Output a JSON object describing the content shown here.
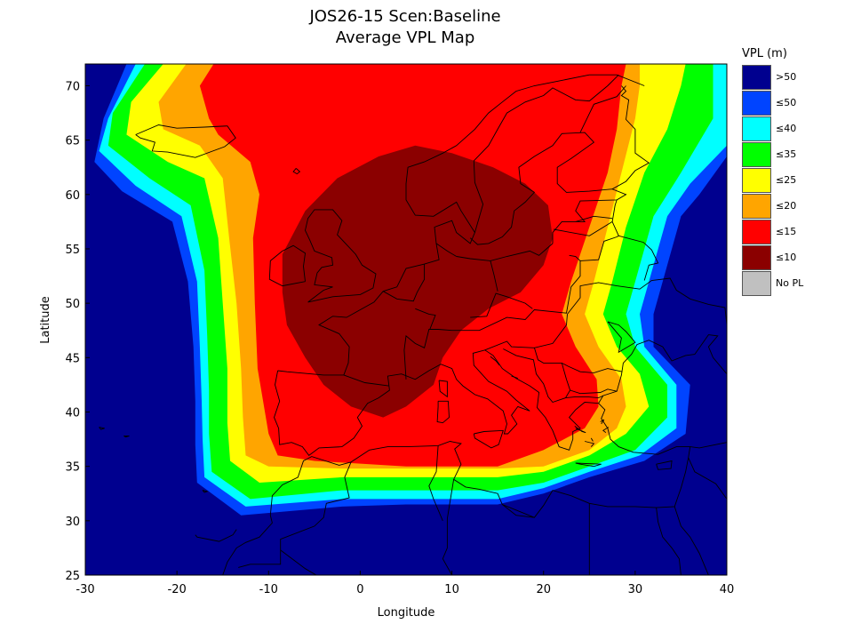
{
  "title_line1": "JOS26-15 Scen:Baseline",
  "title_line2": "Average VPL Map",
  "colors": {
    "ocean_gt50": "#00008f",
    "le50": "#0044ff",
    "le40": "#00ffff",
    "le35": "#00ff00",
    "le25": "#ffff00",
    "le20": "#ffa500",
    "le15": "#ff0000",
    "le10": "#8b0000",
    "no_pl": "#c0c0c0"
  },
  "chart_data": {
    "type": "heatmap",
    "xlabel": "Longitude",
    "ylabel": "Latitude",
    "xlim": [
      -30,
      40
    ],
    "ylim": [
      25,
      72
    ],
    "xticks": [
      "-30",
      "-20",
      "-10",
      "0",
      "10",
      "20",
      "30",
      "40"
    ],
    "yticks": [
      "25",
      "30",
      "35",
      "40",
      "45",
      "50",
      "55",
      "60",
      "65",
      "70"
    ],
    "legend": {
      "title": "VPL (m)",
      "placement": "right",
      "entries": [
        {
          "label": ">50",
          "color": "#00008f"
        },
        {
          "label": "≤50",
          "color": "#0044ff"
        },
        {
          "label": "≤40",
          "color": "#00ffff"
        },
        {
          "label": "≤35",
          "color": "#00ff00"
        },
        {
          "label": "≤25",
          "color": "#ffff00"
        },
        {
          "label": "≤20",
          "color": "#ffa500"
        },
        {
          "label": "≤15",
          "color": "#ff0000"
        },
        {
          "label": "≤10",
          "color": "#8b0000"
        },
        {
          "label": "No PL",
          "color": "#c0c0c0"
        }
      ]
    },
    "contours": [
      {
        "level": "≤50",
        "color": "#0044ff",
        "points": [
          [
            -25.5,
            72
          ],
          [
            -28,
            67
          ],
          [
            -29,
            63
          ],
          [
            -26,
            60.3
          ],
          [
            -20.5,
            57.5
          ],
          [
            -18.8,
            52
          ],
          [
            -18.2,
            46
          ],
          [
            -18,
            41
          ],
          [
            -18,
            37
          ],
          [
            -17.8,
            33.5
          ],
          [
            -13,
            30.5
          ],
          [
            -2,
            31.3
          ],
          [
            5,
            31.5
          ],
          [
            15,
            31.5
          ],
          [
            20,
            32.5
          ],
          [
            25,
            34
          ],
          [
            31,
            35.5
          ],
          [
            35.5,
            38
          ],
          [
            36,
            42.5
          ],
          [
            32,
            46
          ],
          [
            32,
            49
          ],
          [
            33,
            52
          ],
          [
            35,
            58
          ],
          [
            37,
            60
          ],
          [
            40,
            63.5
          ],
          [
            40,
            72
          ]
        ]
      },
      {
        "level": "≤40",
        "color": "#00ffff",
        "points": [
          [
            -24.5,
            72
          ],
          [
            -27.5,
            67
          ],
          [
            -28.5,
            64
          ],
          [
            -24.5,
            60.8
          ],
          [
            -19.5,
            58
          ],
          [
            -17.8,
            52
          ],
          [
            -17.5,
            46
          ],
          [
            -17.3,
            41
          ],
          [
            -17.2,
            37.5
          ],
          [
            -17,
            34
          ],
          [
            -12.5,
            31.3
          ],
          [
            -2,
            32
          ],
          [
            5,
            32
          ],
          [
            15,
            32
          ],
          [
            20,
            33
          ],
          [
            25,
            34.5
          ],
          [
            30.5,
            36
          ],
          [
            34.5,
            38.5
          ],
          [
            34.5,
            42.5
          ],
          [
            31,
            46
          ],
          [
            30.5,
            49
          ],
          [
            31.5,
            52
          ],
          [
            33.5,
            58
          ],
          [
            36,
            61
          ],
          [
            40,
            64.5
          ],
          [
            40,
            72
          ]
        ]
      },
      {
        "level": "≤35",
        "color": "#00ff00",
        "points": [
          [
            -23.5,
            72
          ],
          [
            -27,
            67.5
          ],
          [
            -27.5,
            64.5
          ],
          [
            -23,
            61.5
          ],
          [
            -18.5,
            59
          ],
          [
            -17,
            53
          ],
          [
            -16.7,
            47
          ],
          [
            -16.5,
            42
          ],
          [
            -16.5,
            38
          ],
          [
            -16.2,
            34.5
          ],
          [
            -12,
            32
          ],
          [
            -2,
            32.8
          ],
          [
            5,
            32.8
          ],
          [
            15,
            32.8
          ],
          [
            20,
            33.5
          ],
          [
            25,
            35
          ],
          [
            30,
            36.5
          ],
          [
            33.5,
            39.5
          ],
          [
            33.5,
            42.5
          ],
          [
            30,
            46
          ],
          [
            29,
            49
          ],
          [
            30,
            52
          ],
          [
            32,
            58
          ],
          [
            35,
            62
          ],
          [
            38.5,
            67
          ],
          [
            38.5,
            72
          ]
        ]
      },
      {
        "level": "≤25",
        "color": "#ffff00",
        "points": [
          [
            -21.5,
            72
          ],
          [
            -25,
            68.5
          ],
          [
            -25.5,
            65.5
          ],
          [
            -21,
            63
          ],
          [
            -17,
            61.5
          ],
          [
            -15.5,
            56
          ],
          [
            -15,
            50
          ],
          [
            -14.5,
            44
          ],
          [
            -14.5,
            39
          ],
          [
            -14.2,
            35.5
          ],
          [
            -11,
            33.5
          ],
          [
            -2,
            34
          ],
          [
            5,
            34
          ],
          [
            15,
            34
          ],
          [
            20,
            34.5
          ],
          [
            25,
            36
          ],
          [
            29,
            38
          ],
          [
            31.5,
            40.5
          ],
          [
            30.5,
            43.5
          ],
          [
            28,
            46
          ],
          [
            26.5,
            49
          ],
          [
            27.5,
            52
          ],
          [
            29,
            57
          ],
          [
            31,
            62
          ],
          [
            33.5,
            66
          ],
          [
            35,
            70
          ],
          [
            35.5,
            72
          ]
        ]
      },
      {
        "level": "≤20",
        "color": "#ffa500",
        "points": [
          [
            -19,
            72
          ],
          [
            -22,
            68.5
          ],
          [
            -21.5,
            66
          ],
          [
            -17.5,
            64.5
          ],
          [
            -15,
            61.5
          ],
          [
            -14.3,
            56
          ],
          [
            -13.5,
            50
          ],
          [
            -13,
            44
          ],
          [
            -12.8,
            39.5
          ],
          [
            -12.5,
            36
          ],
          [
            -10,
            35
          ],
          [
            -2,
            34.8
          ],
          [
            5,
            34.8
          ],
          [
            15,
            34.8
          ],
          [
            20,
            35
          ],
          [
            25,
            36.5
          ],
          [
            28,
            38.5
          ],
          [
            29,
            40.5
          ],
          [
            28.5,
            43
          ],
          [
            26,
            46
          ],
          [
            24.5,
            49
          ],
          [
            25.5,
            52
          ],
          [
            27,
            57
          ],
          [
            28.5,
            62
          ],
          [
            30,
            67
          ],
          [
            30.5,
            70
          ],
          [
            30.5,
            72
          ]
        ]
      },
      {
        "level": "≤15",
        "color": "#ff0000",
        "points": [
          [
            -16,
            72
          ],
          [
            -17.5,
            70
          ],
          [
            -16.5,
            67
          ],
          [
            -15.5,
            65.5
          ],
          [
            -12,
            63
          ],
          [
            -11,
            60
          ],
          [
            -11.7,
            56
          ],
          [
            -11.5,
            50
          ],
          [
            -11.2,
            44
          ],
          [
            -10,
            38
          ],
          [
            -9,
            36
          ],
          [
            -5,
            35.5
          ],
          [
            5,
            35
          ],
          [
            15,
            35
          ],
          [
            20,
            36.5
          ],
          [
            24.5,
            38.5
          ],
          [
            26,
            40.5
          ],
          [
            25.8,
            43
          ],
          [
            23.5,
            46
          ],
          [
            22,
            49
          ],
          [
            23,
            52
          ],
          [
            25,
            57
          ],
          [
            27,
            62
          ],
          [
            28,
            66
          ],
          [
            28.5,
            70
          ],
          [
            29,
            72
          ]
        ]
      },
      {
        "level": "≤10",
        "color": "#8b0000",
        "points": [
          [
            -8.5,
            54.5
          ],
          [
            -6,
            58.5
          ],
          [
            -2.5,
            61.5
          ],
          [
            2,
            63.5
          ],
          [
            6,
            64.5
          ],
          [
            10,
            63.8
          ],
          [
            14.5,
            62.5
          ],
          [
            18,
            61
          ],
          [
            20.5,
            59
          ],
          [
            21,
            56
          ],
          [
            20,
            53.5
          ],
          [
            17.5,
            51
          ],
          [
            14,
            49.5
          ],
          [
            11,
            47.5
          ],
          [
            9,
            45
          ],
          [
            8,
            42.5
          ],
          [
            5,
            40.5
          ],
          [
            2.5,
            39.5
          ],
          [
            -1,
            40.5
          ],
          [
            -4,
            42.5
          ],
          [
            -6,
            45
          ],
          [
            -8,
            48
          ],
          [
            -8.5,
            51
          ]
        ]
      }
    ]
  }
}
